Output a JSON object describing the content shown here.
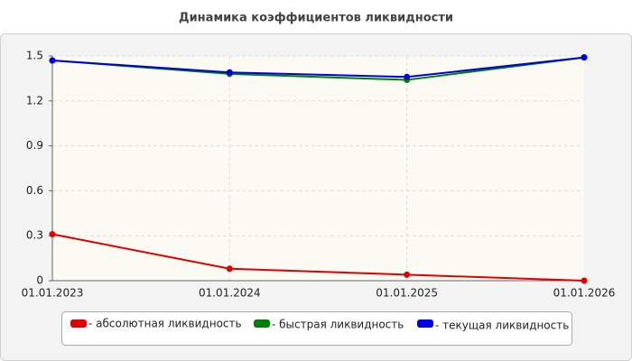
{
  "chart_data": {
    "type": "line",
    "title": "Динамика коэффициентов ликвидности",
    "categories": [
      "01.01.2023",
      "01.01.2024",
      "01.01.2025",
      "01.01.2026"
    ],
    "series": [
      {
        "name": "- абсолютная ликвидность",
        "color": "#e00000",
        "values": [
          0.31,
          0.08,
          0.04,
          0
        ]
      },
      {
        "name": "- быстрая ликвидность",
        "color": "#008000",
        "values": [
          1.47,
          1.38,
          1.34,
          1.49
        ]
      },
      {
        "name": "- текущая ликвидность",
        "color": "#0000e0",
        "values": [
          1.47,
          1.39,
          1.36,
          1.49
        ]
      }
    ],
    "ylim": [
      0,
      1.5
    ],
    "yticks": [
      0,
      0.3,
      0.6,
      0.9,
      1.2,
      1.5
    ],
    "grid": true,
    "legend": "bottom"
  }
}
